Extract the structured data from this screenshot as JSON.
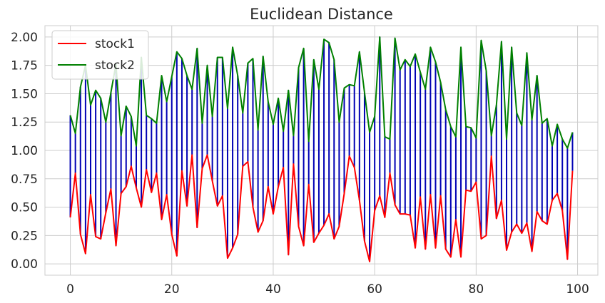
{
  "chart_data": {
    "type": "line",
    "title": "Euclidean Distance",
    "xlabel": "",
    "ylabel": "",
    "xlim": [
      -5,
      104
    ],
    "ylim": [
      -0.1,
      2.1
    ],
    "x_ticks": [
      0,
      20,
      40,
      60,
      80,
      100
    ],
    "x_tick_labels": [
      "0",
      "20",
      "40",
      "60",
      "80",
      "100"
    ],
    "y_ticks": [
      0.0,
      0.25,
      0.5,
      0.75,
      1.0,
      1.25,
      1.5,
      1.75,
      2.0
    ],
    "y_tick_labels": [
      "0.00",
      "0.25",
      "0.50",
      "0.75",
      "1.00",
      "1.25",
      "1.50",
      "1.75",
      "2.00"
    ],
    "grid": true,
    "legend_position": "top-left",
    "series": [
      {
        "name": "stock1",
        "color": "#ff0000",
        "values": [
          0.41,
          0.8,
          0.26,
          0.09,
          0.61,
          0.24,
          0.22,
          0.45,
          0.66,
          0.16,
          0.62,
          0.68,
          0.86,
          0.67,
          0.5,
          0.83,
          0.63,
          0.8,
          0.39,
          0.61,
          0.26,
          0.07,
          0.82,
          0.51,
          0.96,
          0.32,
          0.84,
          0.96,
          0.73,
          0.51,
          0.6,
          0.05,
          0.14,
          0.26,
          0.86,
          0.9,
          0.5,
          0.28,
          0.38,
          0.68,
          0.44,
          0.68,
          0.85,
          0.08,
          0.88,
          0.33,
          0.16,
          0.7,
          0.19,
          0.27,
          0.34,
          0.44,
          0.22,
          0.33,
          0.62,
          0.95,
          0.85,
          0.56,
          0.2,
          0.02,
          0.47,
          0.6,
          0.41,
          0.8,
          0.52,
          0.44,
          0.44,
          0.43,
          0.14,
          0.59,
          0.13,
          0.61,
          0.14,
          0.6,
          0.13,
          0.06,
          0.39,
          0.06,
          0.65,
          0.64,
          0.72,
          0.22,
          0.25,
          0.95,
          0.4,
          0.56,
          0.12,
          0.28,
          0.35,
          0.27,
          0.36,
          0.11,
          0.46,
          0.38,
          0.35,
          0.56,
          0.62,
          0.47,
          0.04,
          0.82
        ]
      },
      {
        "name": "stock2",
        "color": "#008000",
        "values": [
          1.31,
          1.15,
          1.56,
          1.75,
          1.4,
          1.53,
          1.46,
          1.25,
          1.51,
          1.76,
          1.13,
          1.39,
          1.3,
          1.04,
          1.82,
          1.31,
          1.28,
          1.24,
          1.66,
          1.43,
          1.65,
          1.87,
          1.81,
          1.66,
          1.54,
          1.9,
          1.24,
          1.75,
          1.3,
          1.82,
          1.82,
          1.37,
          1.91,
          1.66,
          1.33,
          1.77,
          1.81,
          1.18,
          1.83,
          1.43,
          1.23,
          1.46,
          1.17,
          1.53,
          1.13,
          1.73,
          1.9,
          1.08,
          1.8,
          1.54,
          1.98,
          1.95,
          1.8,
          1.25,
          1.55,
          1.58,
          1.57,
          1.87,
          1.51,
          1.16,
          1.3,
          2.0,
          1.12,
          1.1,
          1.99,
          1.71,
          1.8,
          1.74,
          1.85,
          1.69,
          1.54,
          1.91,
          1.78,
          1.6,
          1.36,
          1.21,
          1.12,
          1.91,
          1.21,
          1.2,
          1.11,
          1.97,
          1.7,
          1.13,
          1.4,
          1.96,
          1.1,
          1.91,
          1.33,
          1.22,
          1.86,
          1.27,
          1.66,
          1.24,
          1.28,
          1.04,
          1.23,
          1.1,
          1.02,
          1.16
        ]
      }
    ],
    "connectors": {
      "color": "#0000b4",
      "description_source": "vertical lines drawn between stock1 and stock2 at each x"
    }
  }
}
